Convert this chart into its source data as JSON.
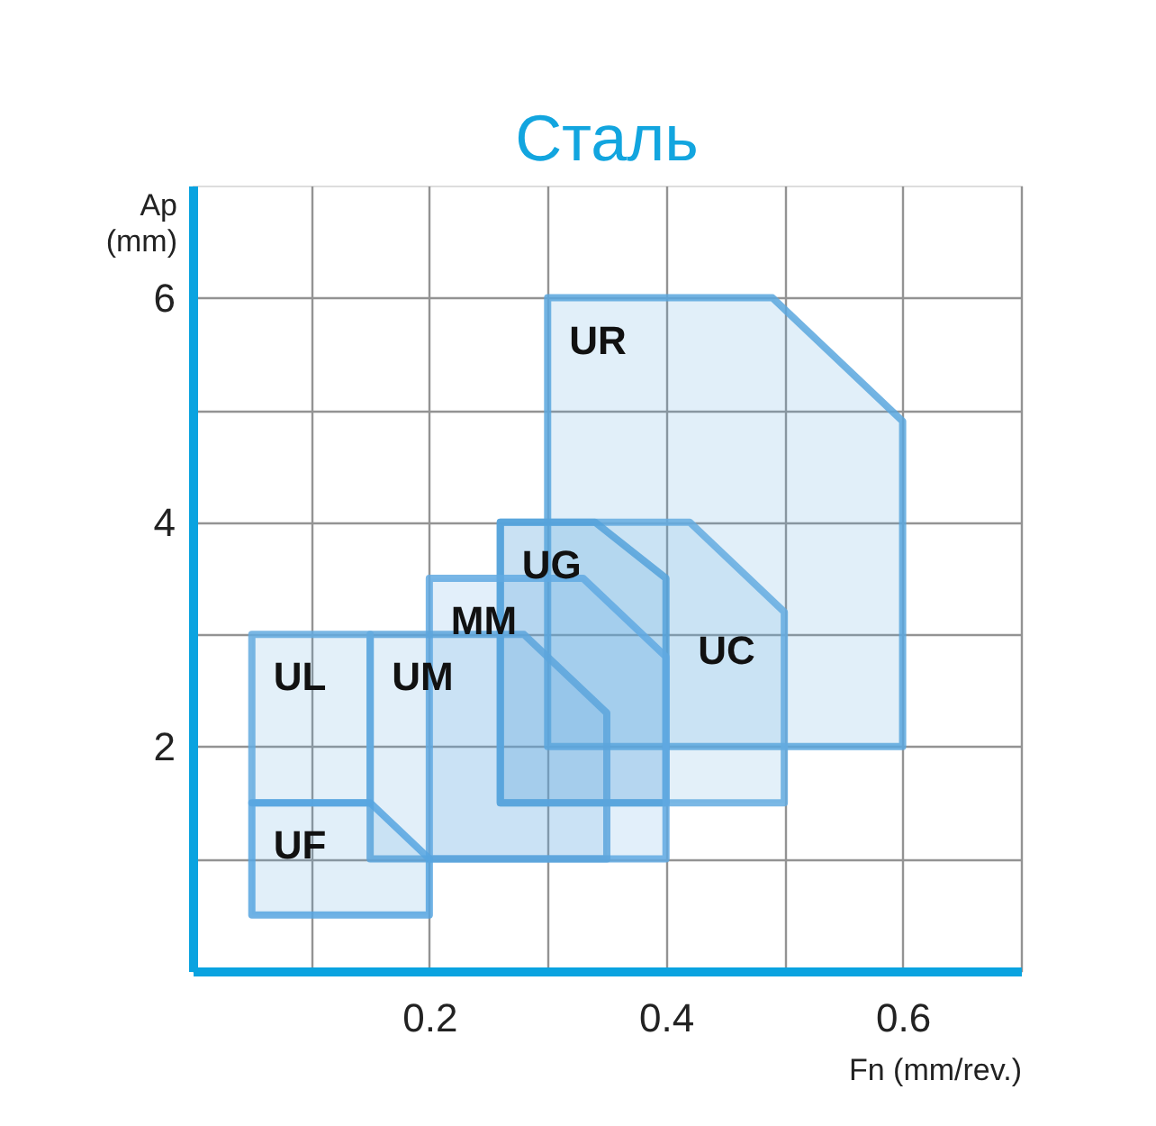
{
  "chart_data": {
    "type": "area",
    "title": "Сталь",
    "xlabel": "Fn (mm/rev.)",
    "ylabel": "Ap (mm)",
    "xlim": [
      0,
      0.7
    ],
    "ylim": [
      0,
      7
    ],
    "xticks": [
      {
        "value": 0.1,
        "label": null
      },
      0.2,
      {
        "value": 0.3,
        "label": null
      },
      0.4,
      {
        "value": 0.5,
        "label": null
      },
      0.6,
      {
        "value": 0.7,
        "label": null
      }
    ],
    "yticks": [
      {
        "value": 1,
        "label": null
      },
      2,
      {
        "value": 3,
        "label": null
      },
      4,
      {
        "value": 5,
        "label": null
      },
      6
    ],
    "grid": true,
    "series": [
      {
        "name": "UR",
        "color": "#5ba7de",
        "x": [
          0.3,
          0.49,
          0.6,
          0.6,
          0.3
        ],
        "values": [
          6,
          6,
          4.9,
          2,
          2
        ]
      },
      {
        "name": "UC",
        "color": "#64abe0",
        "x": [
          0.26,
          0.42,
          0.5,
          0.5,
          0.26
        ],
        "values": [
          4,
          4,
          3.2,
          1.5,
          1.5
        ]
      },
      {
        "name": "UG",
        "color": "#55a2da",
        "x": [
          0.26,
          0.34,
          0.4,
          0.4,
          0.26
        ],
        "values": [
          4,
          4,
          3.5,
          1.5,
          1.5
        ]
      },
      {
        "name": "MM",
        "color": "#60a9e2",
        "x": [
          0.2,
          0.33,
          0.4,
          0.4,
          0.2
        ],
        "values": [
          3.5,
          3.5,
          2.8,
          1,
          1
        ]
      },
      {
        "name": "UM",
        "color": "#5ca5dc",
        "x": [
          0.15,
          0.28,
          0.35,
          0.35,
          0.15
        ],
        "values": [
          3,
          3,
          2.3,
          1,
          1
        ]
      },
      {
        "name": "UL",
        "color": "#63aadf",
        "x": [
          0.05,
          0.15,
          0.15,
          0.05
        ],
        "values": [
          3,
          3,
          1.5,
          1.5
        ]
      },
      {
        "name": "UF",
        "color": "#56a4e0",
        "x": [
          0.05,
          0.15,
          0.2,
          0.2,
          0.05
        ],
        "values": [
          1.5,
          1.5,
          1,
          0.5,
          0.5
        ]
      }
    ]
  }
}
